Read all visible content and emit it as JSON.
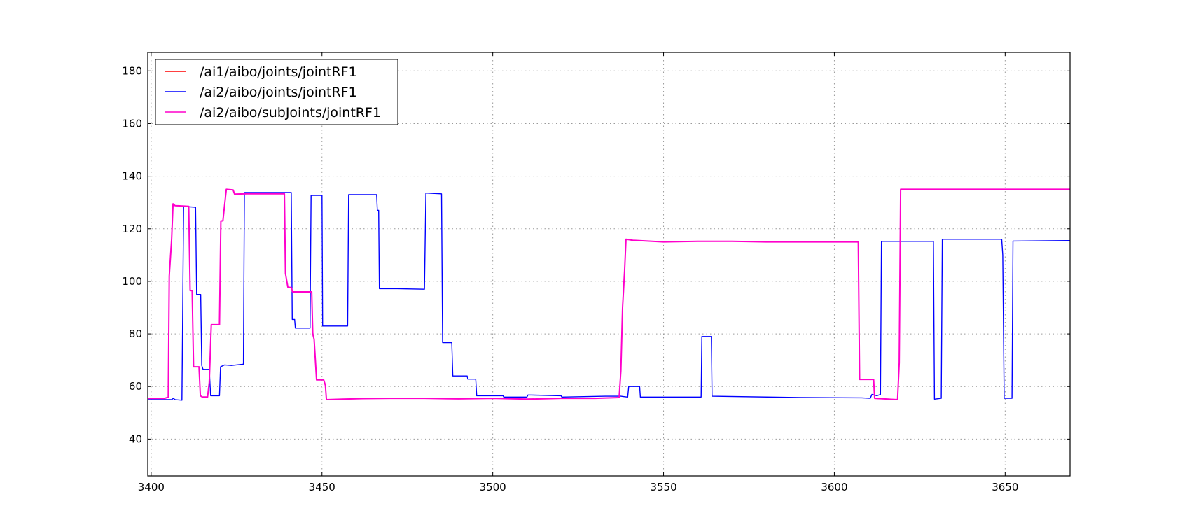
{
  "chart_data": {
    "type": "line",
    "title": "",
    "xlabel": "",
    "ylabel": "",
    "xlim": [
      3399,
      3669
    ],
    "ylim": [
      26,
      187
    ],
    "xticks": [
      3400,
      3450,
      3500,
      3550,
      3600,
      3650
    ],
    "yticks": [
      40,
      60,
      80,
      100,
      120,
      140,
      160,
      180
    ],
    "grid": true,
    "legend_position": "top-left",
    "series": [
      {
        "name": "/ai1/aibo/joints/jointRF1",
        "color": "#ff0000",
        "points": []
      },
      {
        "name": "/ai2/aibo/joints/jointRF1",
        "color": "#0000ff",
        "points": [
          [
            3399,
            55
          ],
          [
            3406,
            55
          ],
          [
            3406.5,
            55.5
          ],
          [
            3407,
            55
          ],
          [
            3409,
            54.8
          ],
          [
            3409.5,
            128.5
          ],
          [
            3413,
            128.2
          ],
          [
            3413.3,
            95
          ],
          [
            3414.5,
            95
          ],
          [
            3414.8,
            68
          ],
          [
            3415.2,
            66.5
          ],
          [
            3417,
            66.5
          ],
          [
            3417.4,
            56.5
          ],
          [
            3420,
            56.5
          ],
          [
            3420.3,
            67.5
          ],
          [
            3421.5,
            68.2
          ],
          [
            3423.5,
            68
          ],
          [
            3427,
            68.5
          ],
          [
            3427.3,
            133.8
          ],
          [
            3441,
            133.8
          ],
          [
            3441.3,
            85.5
          ],
          [
            3442,
            85.5
          ],
          [
            3442.2,
            82.2
          ],
          [
            3446.5,
            82.2
          ],
          [
            3446.8,
            132.7
          ],
          [
            3450,
            132.7
          ],
          [
            3450.2,
            83
          ],
          [
            3457.5,
            83
          ],
          [
            3457.8,
            133
          ],
          [
            3466,
            133
          ],
          [
            3466.2,
            127
          ],
          [
            3466.6,
            127
          ],
          [
            3466.8,
            97.2
          ],
          [
            3472,
            97.2
          ],
          [
            3480,
            97
          ],
          [
            3480.4,
            133.6
          ],
          [
            3485,
            133.3
          ],
          [
            3485.3,
            76.7
          ],
          [
            3488,
            76.7
          ],
          [
            3488.3,
            64
          ],
          [
            3492.5,
            64
          ],
          [
            3492.7,
            62.8
          ],
          [
            3495,
            62.8
          ],
          [
            3495.3,
            56.5
          ],
          [
            3503,
            56.5
          ],
          [
            3503.2,
            56
          ],
          [
            3510,
            56
          ],
          [
            3510.3,
            56.8
          ],
          [
            3520,
            56.5
          ],
          [
            3520.2,
            56
          ],
          [
            3533,
            56.3
          ],
          [
            3537.5,
            56.3
          ],
          [
            3539.5,
            56
          ],
          [
            3539.8,
            60
          ],
          [
            3543,
            60
          ],
          [
            3543.2,
            56
          ],
          [
            3561,
            56
          ],
          [
            3561.2,
            79
          ],
          [
            3564,
            79
          ],
          [
            3564.2,
            56.3
          ],
          [
            3590,
            55.8
          ],
          [
            3608,
            55.7
          ],
          [
            3610.5,
            55.5
          ],
          [
            3611,
            57
          ],
          [
            3612.5,
            56.5
          ],
          [
            3613.5,
            57
          ],
          [
            3613.8,
            115.2
          ],
          [
            3629,
            115.2
          ],
          [
            3629.3,
            55.2
          ],
          [
            3631.3,
            55.5
          ],
          [
            3631.6,
            116
          ],
          [
            3649,
            116
          ],
          [
            3649.3,
            110
          ],
          [
            3649.7,
            55.5
          ],
          [
            3652,
            55.5
          ],
          [
            3652.3,
            115.3
          ],
          [
            3669,
            115.5
          ]
        ]
      },
      {
        "name": "/ai2/aibo/subJoints/jointRF1",
        "color": "#ff00cc",
        "points": [
          [
            3399,
            55.5
          ],
          [
            3404,
            55.5
          ],
          [
            3405,
            56
          ],
          [
            3405.3,
            102
          ],
          [
            3406,
            116
          ],
          [
            3406.4,
            129.5
          ],
          [
            3407,
            128.8
          ],
          [
            3411,
            128.5
          ],
          [
            3411.4,
            96.5
          ],
          [
            3412,
            96.5
          ],
          [
            3412.4,
            67.5
          ],
          [
            3414,
            67.5
          ],
          [
            3414.4,
            56.5
          ],
          [
            3415,
            56
          ],
          [
            3416.5,
            56
          ],
          [
            3417,
            61.5
          ],
          [
            3417.6,
            83.5
          ],
          [
            3420,
            83.5
          ],
          [
            3420.4,
            123
          ],
          [
            3421,
            123
          ],
          [
            3421.4,
            128
          ],
          [
            3422,
            135
          ],
          [
            3424,
            134.8
          ],
          [
            3424.4,
            133.2
          ],
          [
            3428,
            133.3
          ],
          [
            3439,
            133.3
          ],
          [
            3439.3,
            103
          ],
          [
            3440,
            97.8
          ],
          [
            3441,
            97.6
          ],
          [
            3441.4,
            96
          ],
          [
            3447,
            96
          ],
          [
            3447.3,
            80
          ],
          [
            3447.7,
            78
          ],
          [
            3448.4,
            62.5
          ],
          [
            3450.5,
            62.5
          ],
          [
            3451,
            60.5
          ],
          [
            3451.3,
            55
          ],
          [
            3456,
            55.2
          ],
          [
            3462,
            55.4
          ],
          [
            3470,
            55.5
          ],
          [
            3480,
            55.5
          ],
          [
            3490,
            55.3
          ],
          [
            3500,
            55.5
          ],
          [
            3510,
            55.2
          ],
          [
            3520,
            55.5
          ],
          [
            3530,
            55.5
          ],
          [
            3537,
            55.8
          ],
          [
            3537.5,
            66
          ],
          [
            3538,
            90
          ],
          [
            3538.6,
            104
          ],
          [
            3539,
            116
          ],
          [
            3541,
            115.6
          ],
          [
            3550,
            115
          ],
          [
            3560,
            115.2
          ],
          [
            3570,
            115.2
          ],
          [
            3580,
            115
          ],
          [
            3590,
            115
          ],
          [
            3600,
            115
          ],
          [
            3607,
            115
          ],
          [
            3607.4,
            62.7
          ],
          [
            3611.5,
            62.7
          ],
          [
            3611.8,
            55.5
          ],
          [
            3618.5,
            55
          ],
          [
            3619,
            69
          ],
          [
            3619.4,
            135
          ],
          [
            3669,
            135
          ]
        ]
      }
    ]
  }
}
